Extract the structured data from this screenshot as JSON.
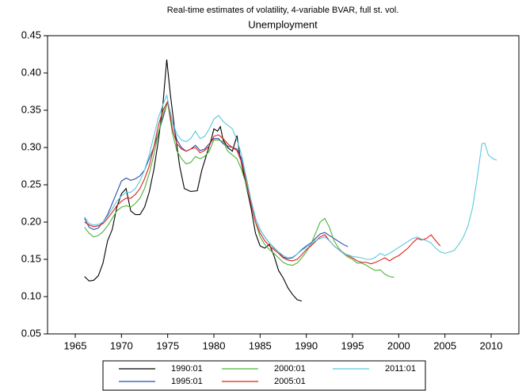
{
  "chart_data": {
    "type": "line",
    "title": "Real-time estimates of volatility, 4-variable BVAR, full st. vol.",
    "subtitle": "Unemployment",
    "xlim": [
      1962,
      2013
    ],
    "xticks": [
      1965,
      1970,
      1975,
      1980,
      1985,
      1990,
      1995,
      2000,
      2005,
      2010
    ],
    "ylim": [
      0.05,
      0.45
    ],
    "yticks": [
      0.05,
      {
        "value": 0.1,
        "label": "0.10"
      },
      0.15,
      {
        "value": 0.2,
        "label": "0.20"
      },
      0.25,
      {
        "value": 0.3,
        "label": "0.30"
      },
      0.35,
      {
        "value": 0.4,
        "label": "0.40"
      },
      0.45
    ],
    "series": [
      {
        "name": "1990:01",
        "color": "#000000",
        "x": [
          1966,
          1966.5,
          1967,
          1967.5,
          1968,
          1968.5,
          1969,
          1969.5,
          1970,
          1970.5,
          1971,
          1971.5,
          1972,
          1972.5,
          1973,
          1973.5,
          1974,
          1974.5,
          1974.9,
          1975.3,
          1975.8,
          1976.3,
          1976.8,
          1977.5,
          1978.2,
          1978.7,
          1979.2,
          1979.7,
          1980,
          1980.4,
          1980.7,
          1981,
          1981.5,
          1982,
          1982.5,
          1982.8,
          1983.3,
          1984,
          1984.5,
          1985,
          1985.5,
          1986,
          1986.5,
          1987,
          1987.5,
          1988,
          1988.5,
          1989,
          1989.5
        ],
        "values": [
          0.127,
          0.121,
          0.122,
          0.128,
          0.145,
          0.175,
          0.19,
          0.22,
          0.238,
          0.245,
          0.215,
          0.21,
          0.21,
          0.22,
          0.24,
          0.27,
          0.31,
          0.36,
          0.418,
          0.37,
          0.32,
          0.275,
          0.245,
          0.241,
          0.242,
          0.27,
          0.29,
          0.31,
          0.325,
          0.322,
          0.328,
          0.31,
          0.3,
          0.295,
          0.316,
          0.29,
          0.26,
          0.22,
          0.185,
          0.168,
          0.165,
          0.17,
          0.155,
          0.135,
          0.125,
          0.112,
          0.103,
          0.096,
          0.094
        ]
      },
      {
        "name": "1995:01",
        "color": "#2a4fa8",
        "x": [
          1966,
          1966.5,
          1967,
          1967.5,
          1968,
          1968.5,
          1969,
          1969.5,
          1970,
          1970.5,
          1971,
          1971.5,
          1972,
          1972.5,
          1973,
          1973.5,
          1974,
          1974.5,
          1975,
          1975.5,
          1976,
          1976.5,
          1977,
          1977.5,
          1978,
          1978.5,
          1979,
          1979.5,
          1980,
          1980.5,
          1981,
          1981.5,
          1982,
          1982.5,
          1983,
          1983.5,
          1984,
          1984.5,
          1985,
          1985.5,
          1986,
          1986.5,
          1987,
          1987.5,
          1988,
          1988.5,
          1989,
          1989.5,
          1990,
          1990.5,
          1991,
          1991.5,
          1992,
          1992.5,
          1993,
          1993.5,
          1994,
          1994.5
        ],
        "values": [
          0.205,
          0.193,
          0.19,
          0.192,
          0.2,
          0.21,
          0.225,
          0.24,
          0.255,
          0.259,
          0.256,
          0.258,
          0.262,
          0.27,
          0.285,
          0.3,
          0.32,
          0.34,
          0.362,
          0.335,
          0.31,
          0.3,
          0.295,
          0.298,
          0.303,
          0.296,
          0.298,
          0.305,
          0.312,
          0.312,
          0.305,
          0.302,
          0.3,
          0.298,
          0.285,
          0.26,
          0.23,
          0.205,
          0.19,
          0.18,
          0.172,
          0.165,
          0.16,
          0.153,
          0.151,
          0.152,
          0.157,
          0.163,
          0.168,
          0.172,
          0.178,
          0.184,
          0.186,
          0.182,
          0.178,
          0.174,
          0.17,
          0.167
        ]
      },
      {
        "name": "2000:01",
        "color": "#4cb33a",
        "x": [
          1966,
          1966.5,
          1967,
          1967.5,
          1968,
          1968.5,
          1969,
          1969.5,
          1970,
          1970.5,
          1971,
          1971.5,
          1972,
          1972.5,
          1973,
          1973.5,
          1974,
          1974.5,
          1975,
          1975.5,
          1976,
          1976.5,
          1977,
          1977.5,
          1978,
          1978.5,
          1979,
          1979.5,
          1980,
          1980.5,
          1981,
          1981.5,
          1982,
          1982.5,
          1983,
          1983.5,
          1984,
          1984.5,
          1985,
          1985.5,
          1986,
          1986.5,
          1987,
          1987.5,
          1988,
          1988.5,
          1989,
          1989.5,
          1990,
          1990.5,
          1991,
          1991.5,
          1992,
          1992.5,
          1993,
          1993.5,
          1994,
          1994.5,
          1995,
          1995.5,
          1996,
          1996.5,
          1997,
          1997.5,
          1998,
          1998.5,
          1999,
          1999.5
        ],
        "values": [
          0.193,
          0.185,
          0.18,
          0.182,
          0.187,
          0.195,
          0.205,
          0.215,
          0.22,
          0.222,
          0.22,
          0.225,
          0.232,
          0.245,
          0.265,
          0.29,
          0.32,
          0.345,
          0.36,
          0.32,
          0.295,
          0.285,
          0.278,
          0.28,
          0.288,
          0.285,
          0.288,
          0.295,
          0.31,
          0.31,
          0.308,
          0.295,
          0.29,
          0.285,
          0.27,
          0.25,
          0.225,
          0.2,
          0.18,
          0.17,
          0.163,
          0.158,
          0.152,
          0.146,
          0.143,
          0.142,
          0.145,
          0.152,
          0.16,
          0.17,
          0.185,
          0.2,
          0.205,
          0.193,
          0.175,
          0.165,
          0.158,
          0.153,
          0.15,
          0.145,
          0.145,
          0.142,
          0.138,
          0.135,
          0.136,
          0.13,
          0.127,
          0.126
        ]
      },
      {
        "name": "2005:01",
        "color": "#e0201b",
        "x": [
          1966,
          1966.5,
          1967,
          1967.5,
          1968,
          1968.5,
          1969,
          1969.5,
          1970,
          1970.5,
          1971,
          1971.5,
          1972,
          1972.5,
          1973,
          1973.5,
          1974,
          1974.5,
          1975,
          1975.5,
          1976,
          1976.5,
          1977,
          1977.5,
          1978,
          1978.5,
          1979,
          1979.5,
          1980,
          1980.5,
          1981,
          1981.5,
          1982,
          1982.5,
          1983,
          1983.5,
          1984,
          1984.5,
          1985,
          1985.5,
          1986,
          1986.5,
          1987,
          1987.5,
          1988,
          1988.5,
          1989,
          1989.5,
          1990,
          1990.5,
          1991,
          1991.5,
          1992,
          1992.5,
          1993,
          1993.5,
          1994,
          1994.5,
          1995,
          1995.5,
          1996,
          1996.5,
          1997,
          1997.5,
          1998,
          1998.5,
          1999,
          1999.5,
          2000,
          2000.5,
          2001,
          2001.5,
          2002,
          2002.5,
          2003,
          2003.5,
          2004,
          2004.5
        ],
        "values": [
          0.2,
          0.196,
          0.194,
          0.195,
          0.198,
          0.205,
          0.213,
          0.222,
          0.228,
          0.232,
          0.232,
          0.237,
          0.245,
          0.258,
          0.275,
          0.3,
          0.33,
          0.35,
          0.362,
          0.325,
          0.305,
          0.298,
          0.295,
          0.298,
          0.3,
          0.293,
          0.296,
          0.302,
          0.315,
          0.317,
          0.312,
          0.305,
          0.3,
          0.296,
          0.28,
          0.255,
          0.225,
          0.2,
          0.185,
          0.175,
          0.168,
          0.163,
          0.158,
          0.152,
          0.149,
          0.148,
          0.15,
          0.156,
          0.163,
          0.168,
          0.174,
          0.18,
          0.183,
          0.175,
          0.168,
          0.163,
          0.159,
          0.155,
          0.152,
          0.148,
          0.146,
          0.146,
          0.144,
          0.146,
          0.149,
          0.152,
          0.148,
          0.152,
          0.155,
          0.16,
          0.165,
          0.172,
          0.178,
          0.176,
          0.178,
          0.183,
          0.175,
          0.168
        ]
      },
      {
        "name": "2011:01",
        "color": "#5bc8df",
        "x": [
          1966,
          1966.5,
          1967,
          1967.5,
          1968,
          1968.5,
          1969,
          1969.5,
          1970,
          1970.5,
          1971,
          1971.5,
          1972,
          1972.5,
          1973,
          1973.5,
          1974,
          1974.5,
          1974.9,
          1975.5,
          1976,
          1976.5,
          1977,
          1977.5,
          1978,
          1978.5,
          1979,
          1979.5,
          1980,
          1980.5,
          1981,
          1981.5,
          1982,
          1982.5,
          1983,
          1983.5,
          1984,
          1984.5,
          1985,
          1985.5,
          1986,
          1986.5,
          1987,
          1987.5,
          1988,
          1988.5,
          1989,
          1989.5,
          1990,
          1990.5,
          1991,
          1991.5,
          1992,
          1992.5,
          1993,
          1993.5,
          1994,
          1994.5,
          1995,
          1995.5,
          1996,
          1996.5,
          1997,
          1997.5,
          1998,
          1998.5,
          1999,
          1999.5,
          2000,
          2000.5,
          2001,
          2001.5,
          2002,
          2002.5,
          2003,
          2003.5,
          2004,
          2004.5,
          2005,
          2005.5,
          2006,
          2006.5,
          2007,
          2007.5,
          2008,
          2008.5,
          2009,
          2009.3,
          2009.7,
          2010.2,
          2010.6
        ],
        "values": [
          0.207,
          0.198,
          0.196,
          0.197,
          0.2,
          0.208,
          0.218,
          0.228,
          0.235,
          0.24,
          0.24,
          0.245,
          0.255,
          0.27,
          0.29,
          0.315,
          0.34,
          0.358,
          0.37,
          0.335,
          0.318,
          0.31,
          0.308,
          0.312,
          0.322,
          0.312,
          0.315,
          0.325,
          0.338,
          0.343,
          0.335,
          0.33,
          0.325,
          0.31,
          0.29,
          0.26,
          0.23,
          0.205,
          0.19,
          0.18,
          0.172,
          0.166,
          0.16,
          0.155,
          0.152,
          0.153,
          0.157,
          0.162,
          0.166,
          0.17,
          0.175,
          0.178,
          0.18,
          0.175,
          0.168,
          0.163,
          0.158,
          0.156,
          0.154,
          0.153,
          0.152,
          0.15,
          0.15,
          0.153,
          0.158,
          0.155,
          0.158,
          0.162,
          0.166,
          0.17,
          0.174,
          0.178,
          0.18,
          0.177,
          0.175,
          0.172,
          0.165,
          0.16,
          0.158,
          0.16,
          0.162,
          0.17,
          0.18,
          0.195,
          0.22,
          0.26,
          0.305,
          0.306,
          0.29,
          0.285,
          0.283
        ]
      }
    ]
  }
}
